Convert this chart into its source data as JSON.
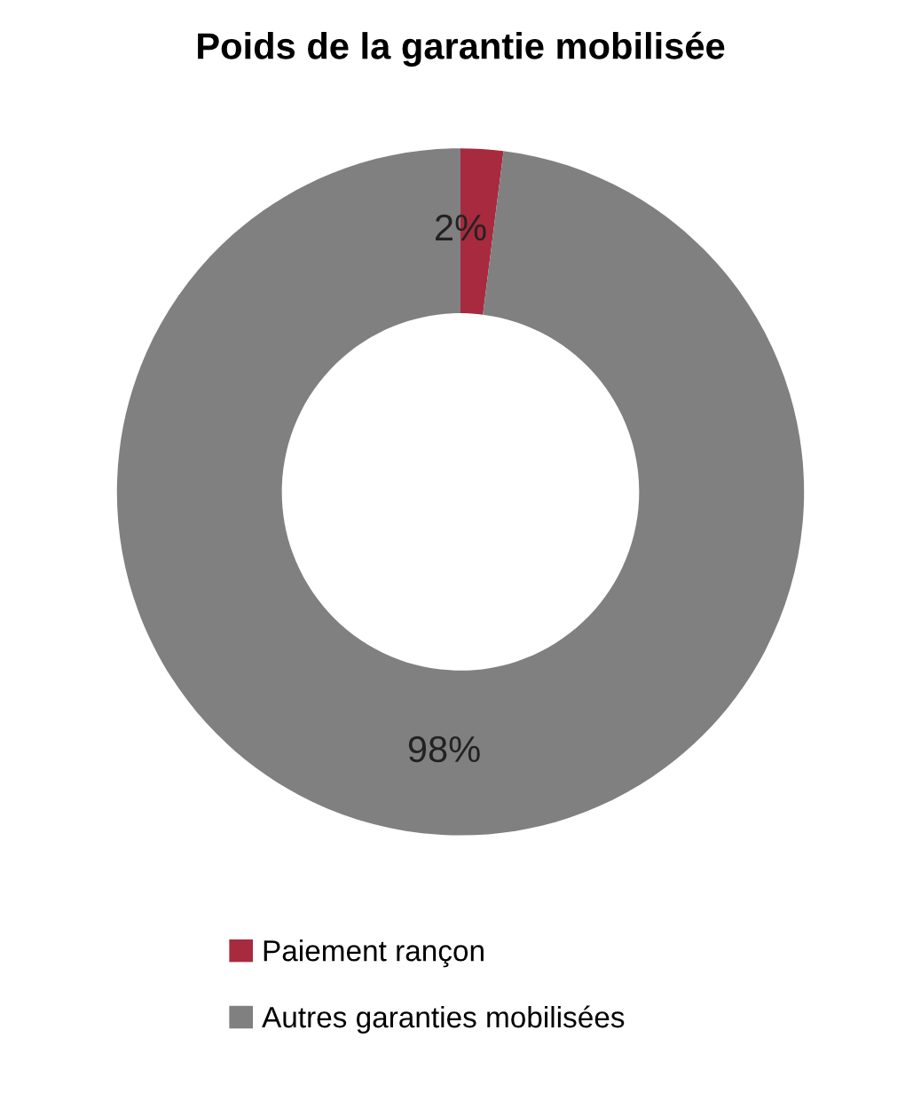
{
  "chart_data": {
    "type": "donut",
    "title": "Poids de la garantie mobilisée",
    "categories": [
      "Paiement rançon",
      "Autres garanties mobilisées"
    ],
    "values": [
      2,
      98
    ],
    "colors": [
      "#a82a3e",
      "#808080"
    ],
    "value_labels": [
      "2%",
      "98%"
    ],
    "legend": "bottom"
  }
}
